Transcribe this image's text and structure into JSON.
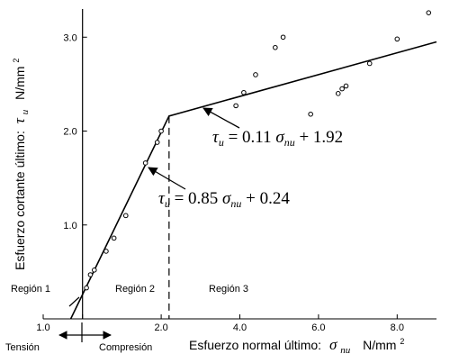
{
  "chart_data": {
    "type": "scatter",
    "title": "",
    "xlabel": "Esfuerzo normal último: σnu N/mm²",
    "xlabel_text": "Esfuerzo normal último:",
    "xlabel_symbol": "σ",
    "xlabel_subscript": "nu",
    "xlabel_unit": "N/mm",
    "xlabel_unit_sup": "2",
    "ylabel": "Esfuerzo cortante último: τu N/mm²",
    "ylabel_text": "Esfuerzo cortante último:",
    "ylabel_symbol": "τ",
    "ylabel_subscript": "u",
    "ylabel_unit": "N/mm",
    "ylabel_unit_sup": "2",
    "xlim": [
      -1.0,
      9.0
    ],
    "ylim": [
      0.0,
      3.3
    ],
    "x_ticks": [
      {
        "value": -1.0,
        "label": "1.0"
      },
      {
        "value": 0.0,
        "label": ""
      },
      {
        "value": 2.0,
        "label": "2.0"
      },
      {
        "value": 4.0,
        "label": "4.0"
      },
      {
        "value": 6.0,
        "label": "6.0"
      },
      {
        "value": 8.0,
        "label": "8.0"
      }
    ],
    "y_ticks": [
      {
        "value": 1.0,
        "label": "1.0"
      },
      {
        "value": 2.0,
        "label": "2.0"
      },
      {
        "value": 3.0,
        "label": "3.0"
      }
    ],
    "grid": false,
    "series": [
      {
        "name": "",
        "type": "scatter",
        "marker": "open-circle",
        "points": [
          [
            0.1,
            0.33
          ],
          [
            0.2,
            0.47
          ],
          [
            0.3,
            0.52
          ],
          [
            0.6,
            0.72
          ],
          [
            0.8,
            0.86
          ],
          [
            1.1,
            1.1
          ],
          [
            1.6,
            1.66
          ],
          [
            1.9,
            1.88
          ],
          [
            2.0,
            2.0
          ],
          [
            3.9,
            2.27
          ],
          [
            4.1,
            2.41
          ],
          [
            4.4,
            2.6
          ],
          [
            4.9,
            2.89
          ],
          [
            5.1,
            3.0
          ],
          [
            5.8,
            2.18
          ],
          [
            6.5,
            2.4
          ],
          [
            6.6,
            2.45
          ],
          [
            6.7,
            2.48
          ],
          [
            7.3,
            2.72
          ],
          [
            8.0,
            2.98
          ],
          [
            8.8,
            3.26
          ]
        ]
      },
      {
        "name": "",
        "type": "line",
        "points": [
          [
            -0.3,
            0.0
          ],
          [
            2.2,
            2.16
          ],
          [
            9.0,
            2.95
          ]
        ]
      }
    ],
    "region_divider": {
      "x": 2.2,
      "y_top": 2.16,
      "style": "dashed"
    },
    "regions": [
      {
        "label": "Región 1"
      },
      {
        "label": "Región 2"
      },
      {
        "label": "Región 3"
      }
    ],
    "annotations": [
      {
        "id": "eq-region3",
        "lhs": "τ",
        "lhs_sub": "u",
        "op": " = 0.11 ",
        "sym": "σ",
        "sym_sub": "nu",
        "rhs": " + 1.92",
        "arrow_target": [
          3.0,
          2.25
        ]
      },
      {
        "id": "eq-region2",
        "lhs": "τ",
        "lhs_sub": "u",
        "op": " = 0.85 ",
        "sym": "σ",
        "sym_sub": "nu",
        "rhs": " + 0.24",
        "arrow_target": [
          1.6,
          1.6
        ]
      }
    ],
    "direction_labels": {
      "left": "Tensión",
      "right": "Compresión"
    }
  }
}
